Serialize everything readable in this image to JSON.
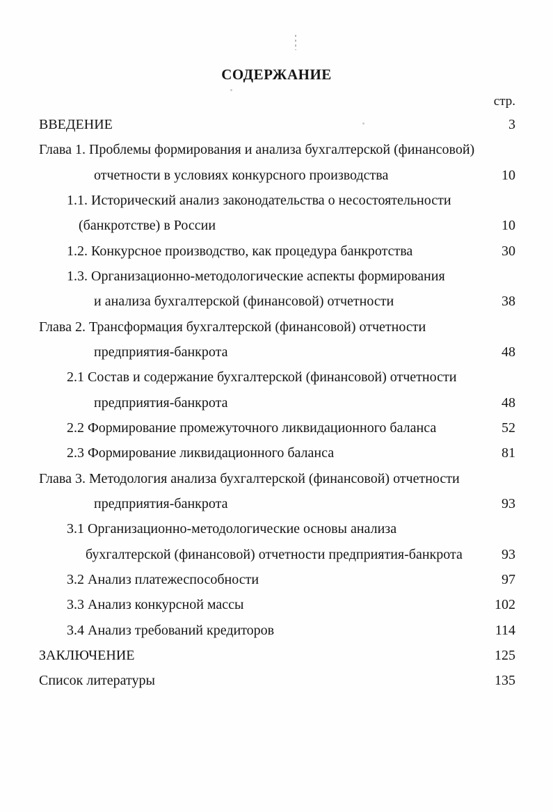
{
  "document": {
    "title": "СОДЕРЖАНИЕ",
    "page_column_header": "стр."
  },
  "toc": {
    "entries": [
      {
        "text": "ВВЕДЕНИЕ",
        "page": "3"
      },
      {
        "text": "Глава 1. Проблемы формирования и анализа бухгалтерской (финансовой)",
        "page": ""
      },
      {
        "text": "отчетности в условиях конкурсного производства",
        "page": "10"
      },
      {
        "text": "1.1. Исторический анализ законодательства о несостоятельности",
        "page": ""
      },
      {
        "text": "(банкротстве) в России",
        "page": "10"
      },
      {
        "text": "1.2. Конкурсное производство, как процедура банкротства",
        "page": "30"
      },
      {
        "text": "1.3. Организационно-методологические аспекты формирования",
        "page": ""
      },
      {
        "text": "и анализа бухгалтерской (финансовой) отчетности",
        "page": "38"
      },
      {
        "text": "Глава 2. Трансформация бухгалтерской (финансовой) отчетности",
        "page": ""
      },
      {
        "text": "предприятия-банкрота",
        "page": "48"
      },
      {
        "text": "2.1 Состав и содержание бухгалтерской (финансовой) отчетности",
        "page": ""
      },
      {
        "text": "предприятия-банкрота",
        "page": "48"
      },
      {
        "text": "2.2 Формирование промежуточного ликвидационного баланса",
        "page": "52"
      },
      {
        "text": "2.3 Формирование ликвидационного баланса",
        "page": "81"
      },
      {
        "text": "Глава 3. Методология анализа бухгалтерской (финансовой) отчетности",
        "page": ""
      },
      {
        "text": "предприятия-банкрота",
        "page": "93"
      },
      {
        "text": "3.1 Организационно-методологические основы анализа",
        "page": ""
      },
      {
        "text": "бухгалтерской (финансовой) отчетности предприятия-банкрота",
        "page": "93"
      },
      {
        "text": "3.2 Анализ платежеспособности",
        "page": "97"
      },
      {
        "text": "3.3 Анализ конкурсной массы",
        "page": "102"
      },
      {
        "text": "3.4 Анализ требований кредиторов",
        "page": "114"
      },
      {
        "text": "ЗАКЛЮЧЕНИЕ",
        "page": "125"
      },
      {
        "text": "Список литературы",
        "page": "135"
      }
    ]
  }
}
